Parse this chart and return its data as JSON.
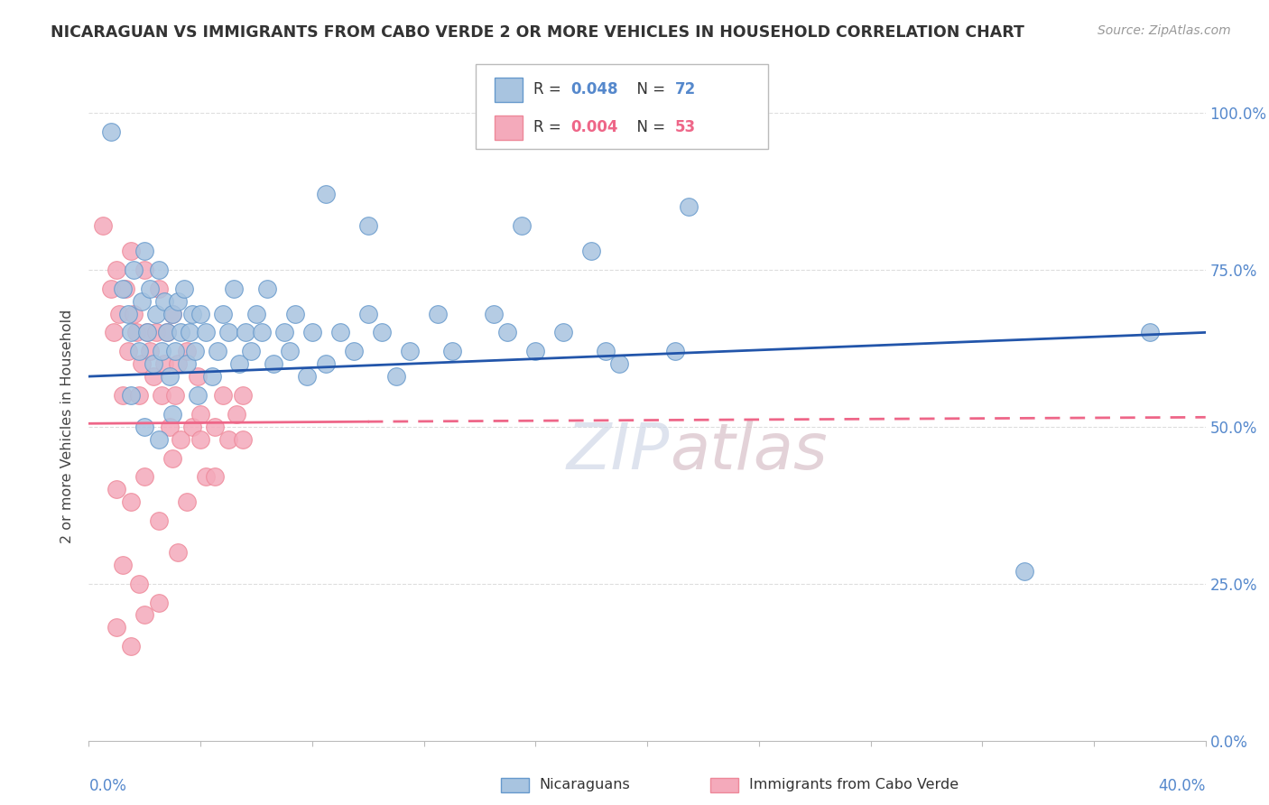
{
  "title": "NICARAGUAN VS IMMIGRANTS FROM CABO VERDE 2 OR MORE VEHICLES IN HOUSEHOLD CORRELATION CHART",
  "source": "Source: ZipAtlas.com",
  "ylabel": "2 or more Vehicles in Household",
  "xlim": [
    0.0,
    40.0
  ],
  "ylim": [
    0.0,
    100.0
  ],
  "yticks": [
    0.0,
    25.0,
    50.0,
    75.0,
    100.0
  ],
  "ytick_labels": [
    "0.0%",
    "25.0%",
    "50.0%",
    "75.0%",
    "100.0%"
  ],
  "blue_color": "#A8C4E0",
  "blue_edge_color": "#6699CC",
  "pink_color": "#F4AABB",
  "pink_edge_color": "#EE8899",
  "blue_line_color": "#2255AA",
  "pink_line_color": "#EE6688",
  "blue_scatter": [
    [
      0.8,
      97
    ],
    [
      1.2,
      72
    ],
    [
      1.4,
      68
    ],
    [
      1.5,
      65
    ],
    [
      1.6,
      75
    ],
    [
      1.8,
      62
    ],
    [
      1.9,
      70
    ],
    [
      2.0,
      78
    ],
    [
      2.1,
      65
    ],
    [
      2.2,
      72
    ],
    [
      2.3,
      60
    ],
    [
      2.4,
      68
    ],
    [
      2.5,
      75
    ],
    [
      2.6,
      62
    ],
    [
      2.7,
      70
    ],
    [
      2.8,
      65
    ],
    [
      2.9,
      58
    ],
    [
      3.0,
      68
    ],
    [
      3.1,
      62
    ],
    [
      3.2,
      70
    ],
    [
      3.3,
      65
    ],
    [
      3.4,
      72
    ],
    [
      3.5,
      60
    ],
    [
      3.6,
      65
    ],
    [
      3.7,
      68
    ],
    [
      3.8,
      62
    ],
    [
      3.9,
      55
    ],
    [
      4.0,
      68
    ],
    [
      4.2,
      65
    ],
    [
      4.4,
      58
    ],
    [
      4.6,
      62
    ],
    [
      4.8,
      68
    ],
    [
      5.0,
      65
    ],
    [
      5.2,
      72
    ],
    [
      5.4,
      60
    ],
    [
      5.6,
      65
    ],
    [
      5.8,
      62
    ],
    [
      6.0,
      68
    ],
    [
      6.2,
      65
    ],
    [
      6.4,
      72
    ],
    [
      6.6,
      60
    ],
    [
      7.0,
      65
    ],
    [
      7.2,
      62
    ],
    [
      7.4,
      68
    ],
    [
      7.8,
      58
    ],
    [
      8.0,
      65
    ],
    [
      8.5,
      60
    ],
    [
      9.0,
      65
    ],
    [
      9.5,
      62
    ],
    [
      10.0,
      68
    ],
    [
      10.5,
      65
    ],
    [
      11.0,
      58
    ],
    [
      11.5,
      62
    ],
    [
      12.5,
      68
    ],
    [
      13.0,
      62
    ],
    [
      14.5,
      68
    ],
    [
      15.0,
      65
    ],
    [
      16.0,
      62
    ],
    [
      17.0,
      65
    ],
    [
      18.5,
      62
    ],
    [
      19.0,
      60
    ],
    [
      21.0,
      62
    ],
    [
      10.0,
      82
    ],
    [
      15.5,
      82
    ],
    [
      18.0,
      78
    ],
    [
      8.5,
      87
    ],
    [
      21.5,
      85
    ],
    [
      33.5,
      27
    ],
    [
      38.0,
      65
    ],
    [
      1.5,
      55
    ],
    [
      2.0,
      50
    ],
    [
      2.5,
      48
    ],
    [
      3.0,
      52
    ]
  ],
  "pink_scatter": [
    [
      0.5,
      82
    ],
    [
      0.8,
      72
    ],
    [
      0.9,
      65
    ],
    [
      1.0,
      75
    ],
    [
      1.1,
      68
    ],
    [
      1.2,
      55
    ],
    [
      1.3,
      72
    ],
    [
      1.4,
      62
    ],
    [
      1.5,
      78
    ],
    [
      1.6,
      68
    ],
    [
      1.7,
      65
    ],
    [
      1.8,
      55
    ],
    [
      1.9,
      60
    ],
    [
      2.0,
      75
    ],
    [
      2.1,
      65
    ],
    [
      2.2,
      62
    ],
    [
      2.3,
      58
    ],
    [
      2.4,
      65
    ],
    [
      2.5,
      72
    ],
    [
      2.6,
      55
    ],
    [
      2.7,
      60
    ],
    [
      2.8,
      65
    ],
    [
      2.9,
      50
    ],
    [
      3.0,
      68
    ],
    [
      3.1,
      55
    ],
    [
      3.2,
      60
    ],
    [
      3.3,
      48
    ],
    [
      3.5,
      62
    ],
    [
      3.7,
      50
    ],
    [
      3.9,
      58
    ],
    [
      4.0,
      52
    ],
    [
      4.2,
      42
    ],
    [
      4.5,
      50
    ],
    [
      4.8,
      55
    ],
    [
      5.0,
      48
    ],
    [
      5.3,
      52
    ],
    [
      5.5,
      55
    ],
    [
      1.0,
      40
    ],
    [
      1.5,
      38
    ],
    [
      2.0,
      42
    ],
    [
      2.5,
      35
    ],
    [
      3.0,
      45
    ],
    [
      3.5,
      38
    ],
    [
      1.2,
      28
    ],
    [
      1.8,
      25
    ],
    [
      2.5,
      22
    ],
    [
      3.2,
      30
    ],
    [
      1.0,
      18
    ],
    [
      1.5,
      15
    ],
    [
      2.0,
      20
    ],
    [
      4.0,
      48
    ],
    [
      4.5,
      42
    ],
    [
      5.5,
      48
    ]
  ],
  "background_color": "#FFFFFF",
  "grid_color": "#DDDDDD"
}
